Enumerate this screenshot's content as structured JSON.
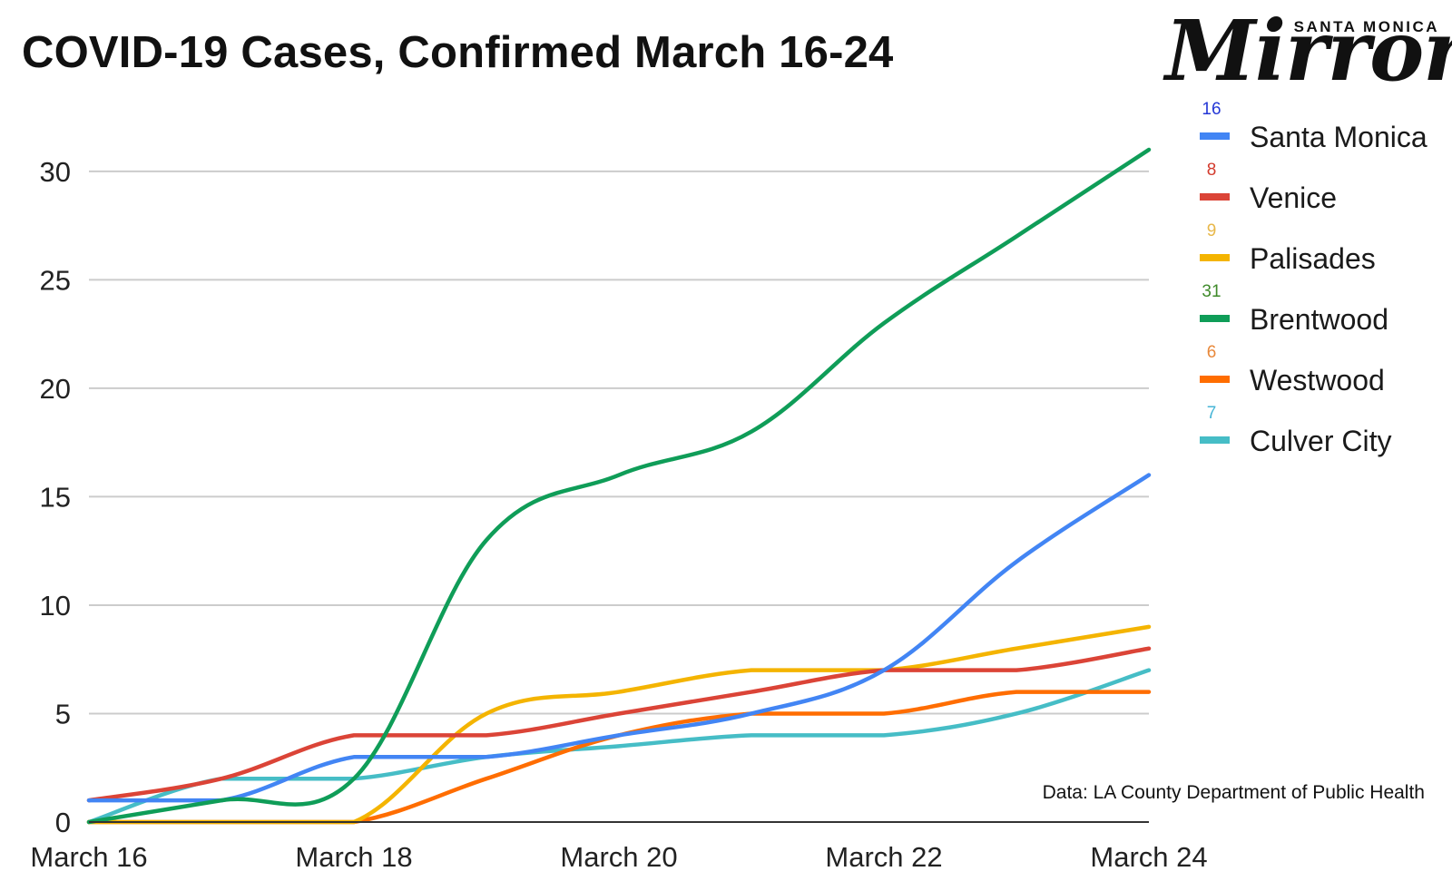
{
  "chart_data": {
    "type": "line",
    "title": "COVID-19 Cases, Confirmed March 16-24",
    "xlabel": "",
    "ylabel": "",
    "x": [
      "March 16",
      "March 17",
      "March 18",
      "March 19",
      "March 20",
      "March 21",
      "March 22",
      "March 23",
      "March 24"
    ],
    "x_tick_labels": [
      "March 16",
      "March 18",
      "March 20",
      "March 22",
      "March 24"
    ],
    "y_ticks": [
      0,
      5,
      10,
      15,
      20,
      25,
      30
    ],
    "ylim": [
      0,
      32
    ],
    "grid": true,
    "legend_position": "right",
    "series": [
      {
        "name": "Santa Monica",
        "color": "#4285f4",
        "end_label": "16",
        "label_color": "#2437d6",
        "values": [
          1,
          1,
          3,
          3,
          4,
          5,
          7,
          12,
          16
        ]
      },
      {
        "name": "Venice",
        "color": "#db4437",
        "end_label": "8",
        "label_color": "#d33a2c",
        "values": [
          1,
          2,
          4,
          4,
          5,
          6,
          7,
          7,
          8
        ]
      },
      {
        "name": "Palisades",
        "color": "#f4b400",
        "end_label": "9",
        "label_color": "#e8b84a",
        "values": [
          0,
          0,
          0,
          5,
          6,
          7,
          7,
          8,
          9
        ]
      },
      {
        "name": "Brentwood",
        "color": "#0f9d58",
        "end_label": "31",
        "label_color": "#3f8a2a",
        "values": [
          0,
          1,
          2,
          13,
          16,
          18,
          23,
          27,
          31
        ]
      },
      {
        "name": "Westwood",
        "color": "#ff6d00",
        "end_label": "6",
        "label_color": "#e8883a",
        "values": [
          0,
          0,
          0,
          2,
          4,
          5,
          5,
          6,
          6
        ]
      },
      {
        "name": "Culver City",
        "color": "#46bdc6",
        "end_label": "7",
        "label_color": "#46b5d6",
        "values": [
          0,
          2,
          2,
          3,
          3.5,
          4,
          4,
          5,
          7
        ]
      }
    ]
  },
  "source_note": "Data: LA County Department of Public Health",
  "logo": {
    "kicker": "SANTA MONICA",
    "name": "Mirror"
  }
}
